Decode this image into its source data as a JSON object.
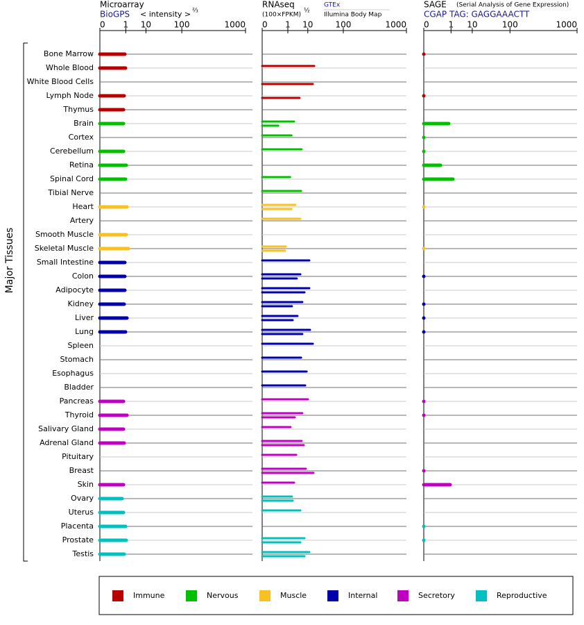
{
  "y_label": "Major Tissues",
  "legend": {
    "items": [
      {
        "name": "Immune",
        "color": "#b80000"
      },
      {
        "name": "Nervous",
        "color": "#00c000"
      },
      {
        "name": "Muscle",
        "color": "#f8c020"
      },
      {
        "name": "Internal",
        "color": "#0000a8"
      },
      {
        "name": "Secretory",
        "color": "#c000c0"
      },
      {
        "name": "Reproductive",
        "color": "#00c0c0"
      }
    ]
  },
  "chart_data": [
    {
      "type": "bar",
      "title": "Microarray",
      "subtitle": "BioGPS",
      "x_label": "< intensity >",
      "x_label_power": "⅔",
      "categories": [
        "Bone Marrow",
        "Whole Blood",
        "White Blood Cells",
        "Lymph Node",
        "Thymus",
        "Brain",
        "Cortex",
        "Cerebellum",
        "Retina",
        "Spinal Cord",
        "Tibial Nerve",
        "Heart",
        "Artery",
        "Smooth Muscle",
        "Skeletal Muscle",
        "Small Intestine",
        "Colon",
        "Adipocyte",
        "Kidney",
        "Liver",
        "Lung",
        "Spleen",
        "Stomach",
        "Esophagus",
        "Bladder",
        "Pancreas",
        "Thyroid",
        "Salivary Gland",
        "Adrenal Gland",
        "Pituitary",
        "Breast",
        "Skin",
        "Ovary",
        "Uterus",
        "Placenta",
        "Prostate",
        "Testis"
      ],
      "colors": [
        "#b80000",
        "#b80000",
        "#b80000",
        "#b80000",
        "#b80000",
        "#00c000",
        "#00c000",
        "#00c000",
        "#00c000",
        "#00c000",
        "#00c000",
        "#f8c020",
        "#f8c020",
        "#f8c020",
        "#f8c020",
        "#0000a8",
        "#0000a8",
        "#0000a8",
        "#0000a8",
        "#0000a8",
        "#0000a8",
        "#0000a8",
        "#0000a8",
        "#0000a8",
        "#0000a8",
        "#c000c0",
        "#c000c0",
        "#c000c0",
        "#c000c0",
        "#c000c0",
        "#c000c0",
        "#c000c0",
        "#00c0c0",
        "#00c0c0",
        "#00c0c0",
        "#00c0c0",
        "#00c0c0"
      ],
      "values": [
        0.86,
        0.96,
        null,
        0.77,
        0.69,
        0.69,
        null,
        0.69,
        1.07,
        0.96,
        null,
        1.19,
        null,
        1.07,
        1.45,
        0.86,
        0.86,
        0.86,
        0.77,
        1.19,
        0.96,
        null,
        null,
        null,
        null,
        0.69,
        1.19,
        0.69,
        0.77,
        null,
        null,
        0.69,
        0.54,
        0.69,
        0.96,
        1.07,
        0.77
      ],
      "xlim": [
        0,
        1000
      ],
      "xticks": [
        0,
        1,
        10,
        100,
        1000
      ]
    },
    {
      "type": "bar",
      "title": "RNAseq",
      "x_label": "(100×FPKM)",
      "x_label_power": "½",
      "series": [
        {
          "name": "GTEx",
          "values": [
            null,
            17,
            null,
            null,
            null,
            2.4,
            1.7,
            5.6,
            null,
            1.4,
            5.3,
            2.8,
            4.9,
            null,
            0.71,
            11.4,
            4.9,
            11.4,
            6.0,
            3.6,
            12.1,
            15.2,
            5.3,
            9.0,
            7.9,
            10.1,
            6.0,
            1.5,
            5.6,
            3.1,
            8.4,
            2.4,
            1.8,
            4.9,
            null,
            7.4,
            11.4
          ]
        },
        {
          "name": "Illumina Body Map",
          "values": [
            null,
            null,
            15.2,
            4.5,
            null,
            0.15,
            null,
            null,
            null,
            null,
            null,
            1.7,
            null,
            null,
            0.63,
            null,
            3.3,
            7.4,
            1.8,
            2.0,
            6.0,
            null,
            null,
            null,
            null,
            null,
            2.6,
            null,
            6.9,
            null,
            16,
            null,
            2.0,
            null,
            null,
            4.9,
            7.4
          ]
        }
      ],
      "xlim": [
        0,
        1000
      ],
      "xticks": [
        0,
        1,
        10,
        100,
        1000
      ]
    },
    {
      "type": "bar",
      "title": "SAGE",
      "title_note": "(Serial Analysis of Gene Expression)",
      "subtitle": "CGAP TAG: GAGGAAACTT",
      "values": [
        0,
        null,
        null,
        0,
        null,
        0.7,
        0,
        0,
        0.14,
        1.3,
        null,
        0,
        null,
        null,
        0,
        null,
        0,
        null,
        0,
        0,
        0,
        null,
        null,
        null,
        null,
        0,
        0,
        null,
        null,
        null,
        0,
        0.87,
        null,
        null,
        0,
        0,
        null
      ],
      "xlim": [
        0,
        1000
      ],
      "xticks": [
        0,
        1,
        10,
        100,
        1000
      ]
    }
  ]
}
